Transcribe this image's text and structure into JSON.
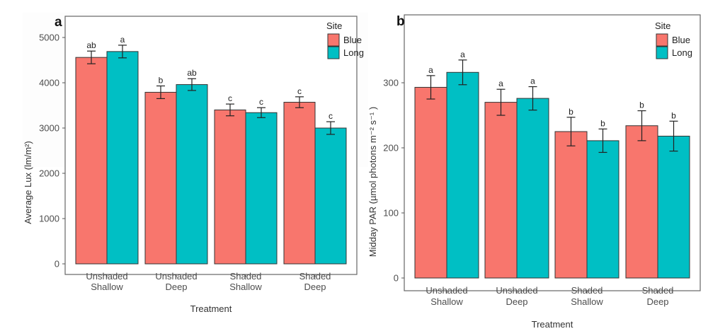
{
  "chart_data": [
    {
      "panel": "a",
      "type": "bar",
      "title": "",
      "xlabel": "Treatment",
      "ylabel": "Average Lux (lm/m²)",
      "ylim": [
        0,
        5200
      ],
      "yticks": [
        0,
        1000,
        2000,
        3000,
        4000,
        5000
      ],
      "categories": [
        [
          "Unshaded",
          "Shallow"
        ],
        [
          "Unshaded",
          "Deep"
        ],
        [
          "Shaded",
          "Shallow"
        ],
        [
          "Shaded",
          "Deep"
        ]
      ],
      "legend": {
        "title": "Site",
        "position": "top-right"
      },
      "series": [
        {
          "name": "Blue",
          "color": "#F8766D",
          "values": [
            4560,
            3790,
            3400,
            3570
          ],
          "errors": [
            140,
            140,
            130,
            120
          ],
          "letters": [
            "ab",
            "b",
            "c",
            "c"
          ]
        },
        {
          "name": "Long",
          "color": "#00BFC4",
          "values": [
            4690,
            3960,
            3340,
            3000
          ],
          "errors": [
            140,
            130,
            110,
            140
          ],
          "letters": [
            "a",
            "ab",
            "c",
            "c"
          ]
        }
      ]
    },
    {
      "panel": "b",
      "type": "bar",
      "title": "",
      "xlabel": "Treatment",
      "ylabel": "Midday PAR (µmol photons m⁻² s⁻¹ )",
      "ylim": [
        0,
        360
      ],
      "yticks": [
        0,
        100,
        200,
        300
      ],
      "categories": [
        [
          "Unshaded",
          "Shallow"
        ],
        [
          "Unshaded",
          "Deep"
        ],
        [
          "Shaded",
          "Shallow"
        ],
        [
          "Shaded",
          "Deep"
        ]
      ],
      "legend": {
        "title": "Site",
        "position": "top-right"
      },
      "series": [
        {
          "name": "Blue",
          "color": "#F8766D",
          "values": [
            293,
            270,
            225,
            234
          ],
          "errors": [
            18,
            20,
            22,
            23
          ],
          "letters": [
            "a",
            "a",
            "b",
            "b"
          ]
        },
        {
          "name": "Long",
          "color": "#00BFC4",
          "values": [
            316,
            276,
            211,
            218
          ],
          "errors": [
            19,
            18,
            18,
            23
          ],
          "letters": [
            "a",
            "a",
            "b",
            "b"
          ]
        }
      ]
    }
  ]
}
